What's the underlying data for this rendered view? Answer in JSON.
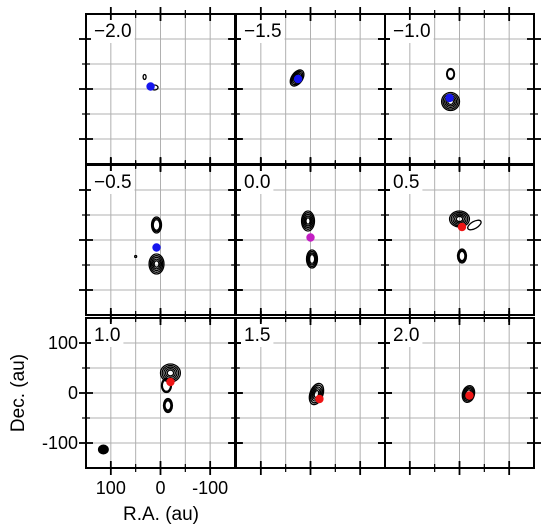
{
  "chart_data": {
    "type": "contour",
    "layout": {
      "rows": 3,
      "cols": 3
    },
    "axes": {
      "xlabel": "R.A. (au)",
      "ylabel": "Dec. (au)",
      "xlim": [
        150,
        -150
      ],
      "ylim": [
        -150,
        150
      ],
      "xticks": [
        100,
        0,
        -100
      ],
      "xtick_labels": [
        "100",
        "0",
        "-100"
      ],
      "yticks": [
        100,
        0,
        -100
      ],
      "ytick_labels": [
        "100",
        "0",
        "-100"
      ],
      "grid_step": 50,
      "grid": true
    },
    "beam": {
      "x": 115,
      "y": -113,
      "major": 14,
      "minor": 12,
      "color": "#000000"
    },
    "colors": {
      "blue": "#1515ee",
      "magenta": "#c31ec3",
      "red": "#ee1515",
      "contour": "#000000",
      "grid": "#b0b0b0"
    },
    "panels": [
      {
        "label": "−2.0",
        "marker": {
          "x": 20,
          "y": 5,
          "color": "blue"
        },
        "sources": [
          {
            "x": 12,
            "y": 3,
            "sx": 7,
            "sy": 5,
            "angle": 0,
            "levels": 1
          },
          {
            "x": 32,
            "y": 24,
            "sx": 3,
            "sy": 5,
            "angle": 0,
            "levels": 1
          }
        ]
      },
      {
        "label": "−1.5",
        "marker": {
          "x": 25,
          "y": 20,
          "color": "blue"
        },
        "sources": [
          {
            "x": 27,
            "y": 22,
            "sx": 11,
            "sy": 18,
            "angle": 35,
            "levels": 5
          }
        ]
      },
      {
        "label": "−1.0",
        "marker": {
          "x": 20,
          "y": -18,
          "color": "blue"
        },
        "sources": [
          {
            "x": 18,
            "y": -25,
            "sx": 18,
            "sy": 18,
            "angle": 0,
            "levels": 5
          },
          {
            "x": 18,
            "y": 30,
            "sx": 8,
            "sy": 11,
            "angle": 0,
            "levels": 2
          }
        ]
      },
      {
        "label": "−0.5",
        "marker": {
          "x": 8,
          "y": -15,
          "color": "blue"
        },
        "sources": [
          {
            "x": 8,
            "y": 30,
            "sx": 10,
            "sy": 16,
            "angle": 0,
            "levels": 3
          },
          {
            "x": 8,
            "y": -48,
            "sx": 15,
            "sy": 20,
            "angle": 0,
            "levels": 5
          },
          {
            "x": 50,
            "y": -33,
            "sx": 2,
            "sy": 2,
            "angle": 0,
            "levels": 1
          }
        ]
      },
      {
        "label": "0.0",
        "marker": {
          "x": 0,
          "y": 5,
          "color": "magenta"
        },
        "sources": [
          {
            "x": 5,
            "y": 38,
            "sx": 13,
            "sy": 20,
            "angle": 0,
            "levels": 5
          },
          {
            "x": -3,
            "y": -38,
            "sx": 11,
            "sy": 18,
            "angle": 0,
            "levels": 4
          }
        ]
      },
      {
        "label": "0.5",
        "marker": {
          "x": -5,
          "y": 26,
          "color": "red"
        },
        "sources": [
          {
            "x": 0,
            "y": 42,
            "sx": 20,
            "sy": 16,
            "angle": 0,
            "levels": 5
          },
          {
            "x": -30,
            "y": 30,
            "sx": 15,
            "sy": 7,
            "angle": -30,
            "levels": 1
          },
          {
            "x": -5,
            "y": -32,
            "sx": 9,
            "sy": 14,
            "angle": 0,
            "levels": 3
          }
        ]
      },
      {
        "label": "1.0",
        "marker": {
          "x": -20,
          "y": 22,
          "color": "red"
        },
        "sources": [
          {
            "x": -20,
            "y": 40,
            "sx": 20,
            "sy": 18,
            "angle": 0,
            "levels": 5
          },
          {
            "x": -12,
            "y": 15,
            "sx": 10,
            "sy": 14,
            "angle": 0,
            "levels": 2
          },
          {
            "x": -15,
            "y": -25,
            "sx": 9,
            "sy": 14,
            "angle": 0,
            "levels": 3
          }
        ]
      },
      {
        "label": "1.5",
        "marker": {
          "x": -18,
          "y": -12,
          "color": "red"
        },
        "sources": [
          {
            "x": -12,
            "y": -2,
            "sx": 13,
            "sy": 22,
            "angle": 20,
            "levels": 5
          }
        ]
      },
      {
        "label": "2.0",
        "marker": {
          "x": -20,
          "y": -5,
          "color": "red"
        },
        "sources": [
          {
            "x": -18,
            "y": -2,
            "sx": 12,
            "sy": 17,
            "angle": 15,
            "levels": 4
          }
        ]
      }
    ]
  }
}
